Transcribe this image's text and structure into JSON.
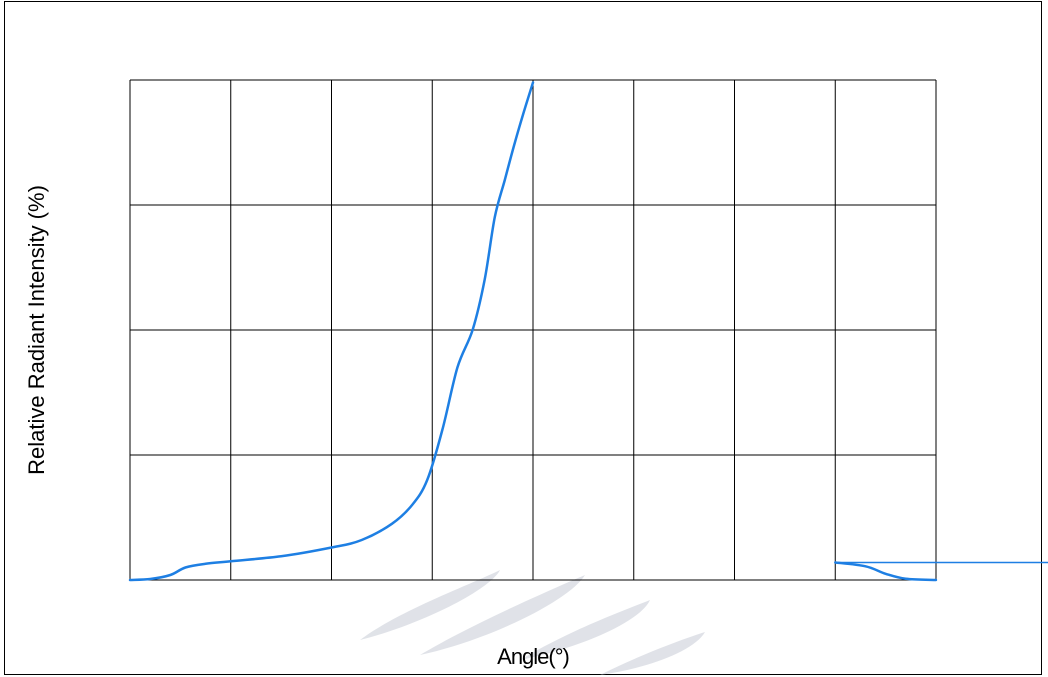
{
  "chart_data": {
    "type": "line",
    "title": "",
    "xlabel": "Angle(°)",
    "ylabel": "Relative Radiant Intensity (%)",
    "grid": true,
    "grid_columns": 8,
    "grid_rows": 4,
    "xlim": [
      0,
      8
    ],
    "ylim": [
      0,
      4
    ],
    "series": [
      {
        "color": "#1e7fe3",
        "points": [
          [
            0.0,
            0.0
          ],
          [
            0.2,
            0.008
          ],
          [
            0.4,
            0.04
          ],
          [
            0.55,
            0.1
          ],
          [
            0.75,
            0.13
          ],
          [
            1.0,
            0.15
          ],
          [
            1.5,
            0.19
          ],
          [
            2.0,
            0.26
          ],
          [
            2.3,
            0.32
          ],
          [
            2.6,
            0.45
          ],
          [
            2.8,
            0.6
          ],
          [
            2.95,
            0.8
          ],
          [
            3.1,
            1.2
          ],
          [
            3.25,
            1.7
          ],
          [
            3.4,
            2.0
          ],
          [
            3.52,
            2.4
          ],
          [
            3.62,
            2.9
          ],
          [
            3.72,
            3.2
          ],
          [
            3.82,
            3.5
          ],
          [
            3.9,
            3.72
          ],
          [
            4.0,
            3.98
          ]
        ]
      },
      {
        "color": "#1e7fe3",
        "points": [
          [
            7.0,
            0.14
          ],
          [
            7.3,
            0.11
          ],
          [
            7.5,
            0.05
          ],
          [
            7.7,
            0.01
          ],
          [
            8.0,
            0.0
          ]
        ]
      }
    ],
    "leader_line": {
      "color": "#1e7fe3",
      "y": 0.14
    }
  }
}
